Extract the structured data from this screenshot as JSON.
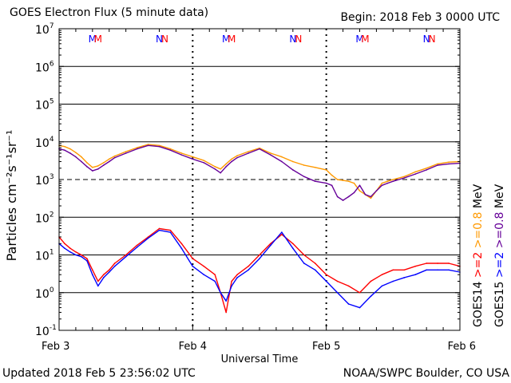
{
  "header": {
    "title": "GOES Electron Flux (5 minute data)",
    "begin": "Begin: 2018 Feb 3 0000 UTC"
  },
  "footer": {
    "updated": "Updated 2018 Feb  5 23:56:02 UTC",
    "credit": "NOAA/SWPC Boulder, CO USA"
  },
  "colors": {
    "goes14_high": "#ff9900",
    "goes15_high": "#660099",
    "goes14_low": "#ff0000",
    "goes15_low": "#0000ff",
    "grid": "#000000"
  },
  "chart_data": {
    "type": "line",
    "xlabel": "Universal Time",
    "ylabel": "Particles cm⁻²s⁻¹sr⁻¹",
    "x_tick_labels": [
      "Feb 3",
      "Feb 4",
      "Feb 5",
      "Feb 6"
    ],
    "x_domain_hours": [
      0,
      72
    ],
    "yscale": "log",
    "y_ticks": [
      {
        "mant": "10",
        "exp": "7"
      },
      {
        "mant": "10",
        "exp": "6"
      },
      {
        "mant": "10",
        "exp": "5"
      },
      {
        "mant": "10",
        "exp": "4"
      },
      {
        "mant": "10",
        "exp": "3"
      },
      {
        "mant": "10",
        "exp": "2"
      },
      {
        "mant": "10",
        "exp": "1"
      },
      {
        "mant": "10",
        "exp": "0"
      },
      {
        "mant": "10",
        "exp": "-1"
      }
    ],
    "ylim_exp": [
      -1,
      7
    ],
    "threshold_exp": 3,
    "markers": [
      {
        "hour": 6.0,
        "text": "M",
        "color": "#0000ff"
      },
      {
        "hour": 7.0,
        "text": "M",
        "color": "#ff0000"
      },
      {
        "hour": 18.0,
        "text": "N",
        "color": "#0000ff"
      },
      {
        "hour": 19.0,
        "text": "N",
        "color": "#ff0000"
      },
      {
        "hour": 30.0,
        "text": "M",
        "color": "#0000ff"
      },
      {
        "hour": 31.0,
        "text": "M",
        "color": "#ff0000"
      },
      {
        "hour": 42.0,
        "text": "N",
        "color": "#0000ff"
      },
      {
        "hour": 43.0,
        "text": "N",
        "color": "#ff0000"
      },
      {
        "hour": 54.0,
        "text": "M",
        "color": "#0000ff"
      },
      {
        "hour": 55.0,
        "text": "M",
        "color": "#ff0000"
      },
      {
        "hour": 66.0,
        "text": "N",
        "color": "#0000ff"
      },
      {
        "hour": 67.0,
        "text": "N",
        "color": "#ff0000"
      }
    ],
    "legend": {
      "goes14": {
        "sat": "GOES14",
        "low": ">=2",
        "high": ">=0.8",
        "unit": "MeV"
      },
      "goes15": {
        "sat": "GOES15",
        "low": ">=2",
        "high": ">=0.8",
        "unit": "MeV"
      }
    },
    "series": [
      {
        "name": "GOES14 >=0.8 MeV",
        "color": "#ff9900",
        "x": [
          0,
          1,
          2,
          3,
          4,
          5,
          6,
          7,
          8,
          9,
          10,
          12,
          14,
          16,
          18,
          20,
          22,
          24,
          26,
          28,
          29,
          30,
          31,
          32,
          34,
          36,
          38,
          40,
          42,
          44,
          46,
          48,
          49,
          50,
          51,
          52,
          53,
          54,
          55,
          56,
          57,
          58,
          59,
          60,
          62,
          64,
          66,
          68,
          70,
          72
        ],
        "y": [
          8000,
          7500,
          6500,
          5200,
          4000,
          2800,
          2100,
          2300,
          2800,
          3500,
          4200,
          5500,
          7000,
          8500,
          8000,
          6500,
          5000,
          4000,
          3200,
          2200,
          1900,
          2600,
          3500,
          4300,
          5500,
          6800,
          5000,
          4000,
          3000,
          2400,
          2100,
          1800,
          1300,
          1000,
          950,
          900,
          800,
          500,
          400,
          320,
          500,
          800,
          900,
          1000,
          1200,
          1600,
          2000,
          2600,
          2900,
          3000
        ]
      },
      {
        "name": "GOES15 >=0.8 MeV",
        "color": "#660099",
        "x": [
          0,
          1,
          2,
          3,
          4,
          5,
          6,
          7,
          8,
          9,
          10,
          12,
          14,
          16,
          18,
          20,
          22,
          24,
          26,
          28,
          29,
          30,
          31,
          32,
          34,
          36,
          38,
          40,
          42,
          44,
          46,
          48,
          49,
          50,
          51,
          52,
          53,
          54,
          55,
          56,
          57,
          58,
          59,
          60,
          62,
          64,
          66,
          68,
          70,
          72
        ],
        "y": [
          6500,
          6000,
          5000,
          4000,
          3000,
          2200,
          1700,
          1900,
          2400,
          3000,
          3800,
          5000,
          6500,
          8000,
          7500,
          6000,
          4500,
          3500,
          2800,
          1900,
          1500,
          2200,
          3000,
          3800,
          5000,
          6500,
          4500,
          3000,
          1800,
          1200,
          900,
          800,
          700,
          350,
          280,
          350,
          450,
          700,
          400,
          350,
          500,
          700,
          800,
          900,
          1100,
          1400,
          1800,
          2400,
          2600,
          2700
        ]
      },
      {
        "name": "GOES14 >=2 MeV",
        "color": "#ff0000",
        "x": [
          0,
          1,
          2,
          3,
          4,
          5,
          6,
          7,
          8,
          9,
          10,
          12,
          14,
          16,
          18,
          20,
          22,
          24,
          26,
          28,
          29,
          30,
          31,
          32,
          34,
          36,
          38,
          40,
          42,
          44,
          46,
          48,
          50,
          52,
          54,
          56,
          58,
          60,
          62,
          64,
          66,
          68,
          70,
          72
        ],
        "y": [
          30,
          20,
          15,
          12,
          10,
          8,
          4,
          2,
          3,
          4,
          6,
          10,
          18,
          30,
          50,
          45,
          20,
          8,
          5,
          3,
          1,
          0.3,
          2,
          3,
          5,
          10,
          20,
          35,
          20,
          10,
          6,
          3,
          2,
          1.5,
          1,
          2,
          3,
          4,
          4,
          5,
          6,
          6,
          6,
          5
        ]
      },
      {
        "name": "GOES15 >=2 MeV",
        "color": "#0000ff",
        "x": [
          0,
          1,
          2,
          3,
          4,
          5,
          6,
          7,
          8,
          9,
          10,
          12,
          14,
          16,
          18,
          20,
          22,
          24,
          26,
          28,
          29,
          30,
          31,
          32,
          34,
          36,
          38,
          40,
          42,
          44,
          46,
          48,
          50,
          52,
          54,
          56,
          58,
          60,
          62,
          64,
          66,
          68,
          70,
          72
        ],
        "y": [
          20,
          15,
          12,
          10,
          9,
          7,
          3,
          1.5,
          2.5,
          3.5,
          5,
          9,
          16,
          28,
          45,
          40,
          15,
          5,
          3,
          2,
          1,
          0.6,
          1.5,
          2.5,
          4,
          8,
          18,
          40,
          15,
          6,
          4,
          2,
          1,
          0.5,
          0.4,
          0.8,
          1.5,
          2,
          2.5,
          3,
          4,
          4,
          4,
          3.5
        ]
      }
    ]
  }
}
